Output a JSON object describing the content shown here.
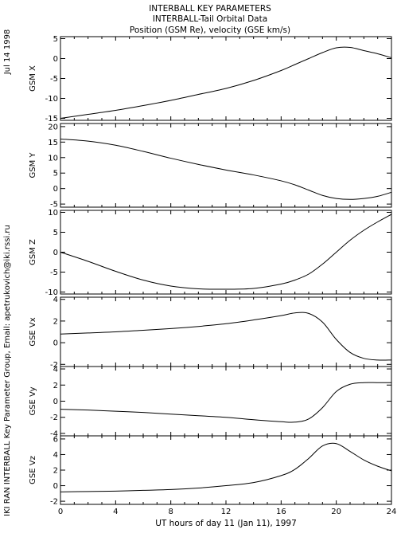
{
  "header": {
    "title_lines": [
      "INTERBALL KEY PARAMETERS",
      "INTERBALL-Tail Orbital Data",
      "Position (GSM Re), velocity (GSE km/s)"
    ],
    "date_label": "Jul 14 1998",
    "credit_label": "IKI RAN INTERBALL Key Parameter Group, Email: apetrukovich@iki.rssi.ru"
  },
  "chart_data": {
    "type": "line",
    "xlabel": "UT hours of day  11 (Jan 11), 1997",
    "xlim": [
      0,
      24
    ],
    "xticks": [
      0,
      4,
      8,
      12,
      16,
      20,
      24
    ],
    "x": [
      0,
      2,
      4,
      6,
      8,
      10,
      12,
      14,
      16,
      17,
      18,
      19,
      20,
      21,
      22,
      23,
      24
    ],
    "grid": false,
    "panels": [
      {
        "ylabel": "GSM X",
        "ylim": [
          -15.5,
          5.5
        ],
        "yticks": [
          5,
          0,
          -5,
          -10,
          -15
        ],
        "values": [
          -15,
          -14,
          -13,
          -11.8,
          -10.5,
          -9,
          -7.5,
          -5.5,
          -3,
          -1.5,
          0,
          1.5,
          2.7,
          2.8,
          2,
          1.2,
          0.2
        ]
      },
      {
        "ylabel": "GSM Y",
        "ylim": [
          -6,
          21
        ],
        "yticks": [
          20,
          15,
          10,
          5,
          0,
          -5
        ],
        "values": [
          16,
          15.3,
          14,
          12,
          9.8,
          7.8,
          6,
          4.4,
          2.5,
          1.2,
          -0.5,
          -2.2,
          -3.2,
          -3.5,
          -3.2,
          -2.5,
          -1.2
        ]
      },
      {
        "ylabel": "GSM Z",
        "ylim": [
          -10.5,
          10.5
        ],
        "yticks": [
          10,
          5,
          0,
          -5,
          -10
        ],
        "values": [
          0,
          -2.3,
          -4.8,
          -7,
          -8.5,
          -9.2,
          -9.3,
          -9.1,
          -8,
          -7,
          -5.5,
          -3,
          0,
          3,
          5.5,
          7.6,
          9.5
        ]
      },
      {
        "ylabel": "GSE Vx",
        "ylim": [
          -2.2,
          4.2
        ],
        "yticks": [
          4,
          2,
          0,
          -2
        ],
        "values": [
          0.8,
          0.9,
          1.0,
          1.15,
          1.3,
          1.5,
          1.75,
          2.1,
          2.5,
          2.75,
          2.7,
          1.9,
          0.3,
          -0.9,
          -1.45,
          -1.6,
          -1.6
        ]
      },
      {
        "ylabel": "GSE Vy",
        "ylim": [
          -4.3,
          4.3
        ],
        "yticks": [
          4,
          2,
          0,
          -2,
          -4
        ],
        "values": [
          -1.0,
          -1.1,
          -1.25,
          -1.4,
          -1.6,
          -1.8,
          -2.0,
          -2.3,
          -2.55,
          -2.6,
          -2.2,
          -0.8,
          1.2,
          2.1,
          2.3,
          2.3,
          2.3
        ]
      },
      {
        "ylabel": "GSE Vz",
        "ylim": [
          -2.4,
          6.4
        ],
        "yticks": [
          6,
          4,
          2,
          0,
          -2
        ],
        "values": [
          -0.8,
          -0.75,
          -0.7,
          -0.6,
          -0.5,
          -0.3,
          0.0,
          0.4,
          1.3,
          2.1,
          3.5,
          5.1,
          5.4,
          4.4,
          3.3,
          2.5,
          1.9
        ]
      }
    ]
  }
}
